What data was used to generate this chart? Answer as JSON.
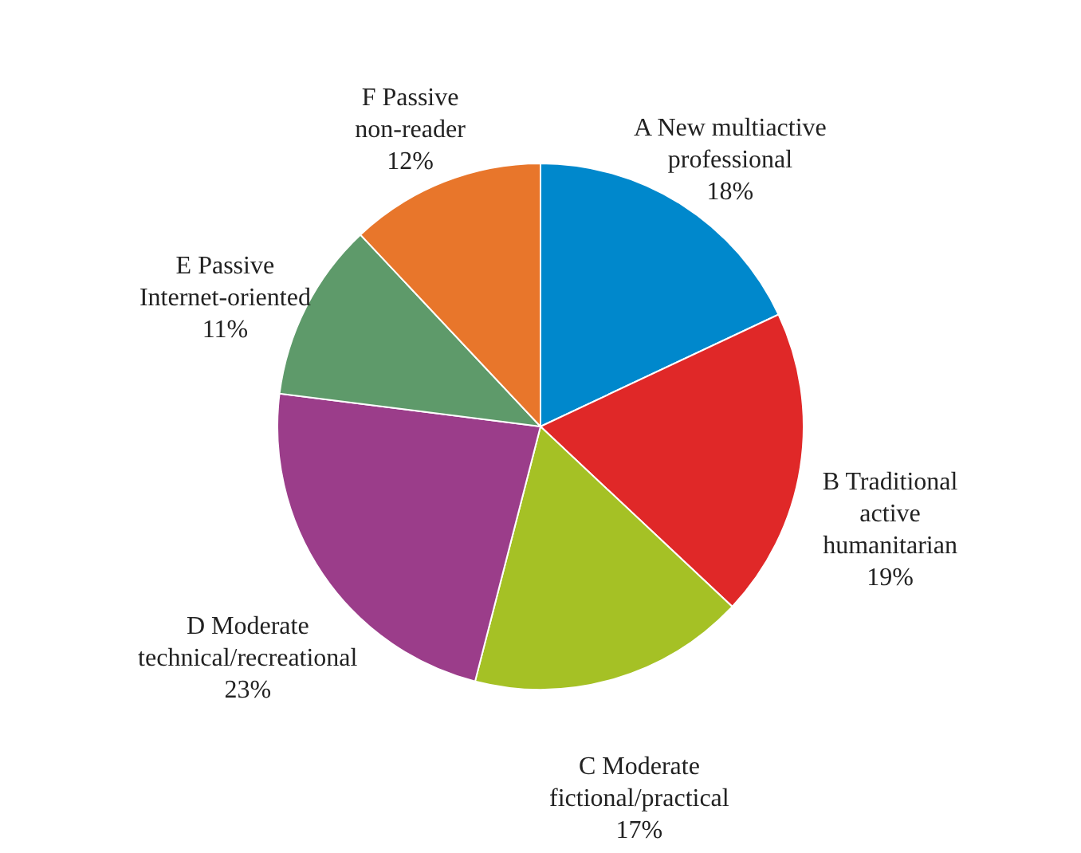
{
  "chart_data": {
    "type": "pie",
    "categories": [
      "A New multiactive professional",
      "B Traditional active humanitarian",
      "C Moderate fictional/practical",
      "D Moderate technical/recreational",
      "E Passive Internet-oriented",
      "F Passive non-reader"
    ],
    "values": [
      18,
      19,
      17,
      23,
      11,
      12
    ],
    "value_labels": [
      "18%",
      "19%",
      "17%",
      "23%",
      "11%",
      "12%"
    ],
    "colors": [
      "#0088cc",
      "#e02828",
      "#a5c125",
      "#9b3d8a",
      "#5e9a6a",
      "#e8762b"
    ]
  }
}
